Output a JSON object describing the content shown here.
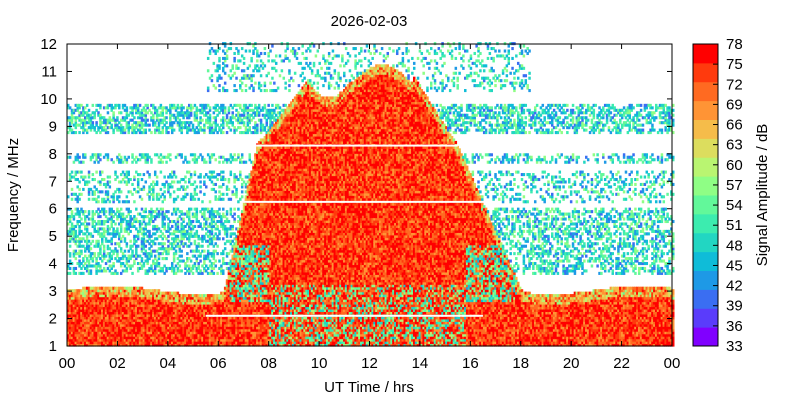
{
  "chart_data": {
    "type": "heatmap",
    "title": "2026-02-03",
    "xlabel": "UT Time / hrs",
    "ylabel": "Frequency / MHz",
    "colorbar_label": "Signal Amplitude / dB",
    "xlim": [
      0,
      24
    ],
    "ylim": [
      1,
      12
    ],
    "x_ticks": [
      "00",
      "02",
      "04",
      "06",
      "08",
      "10",
      "12",
      "14",
      "16",
      "18",
      "20",
      "22",
      "00"
    ],
    "y_ticks": [
      "1",
      "2",
      "3",
      "4",
      "5",
      "6",
      "7",
      "8",
      "9",
      "10",
      "11",
      "12"
    ],
    "colorbar": {
      "min": 33,
      "max": 78,
      "ticks": [
        "33",
        "36",
        "39",
        "42",
        "45",
        "48",
        "51",
        "54",
        "57",
        "60",
        "63",
        "66",
        "69",
        "72",
        "75",
        "78"
      ],
      "colors": [
        "#8000ff",
        "#5a3cfb",
        "#3a6ef2",
        "#1e99e6",
        "#0fbcd8",
        "#22d6c2",
        "#3cecaf",
        "#62f89a",
        "#8ffe85",
        "#b9f571",
        "#dcdd5e",
        "#f5bc4a",
        "#ff9435",
        "#ff6a21",
        "#ff3a0d",
        "#ff0000"
      ]
    },
    "summary": {
      "day_intense_band": {
        "start_hr": 6.2,
        "end_hr": 18.0,
        "peak_freq_mhz": 11.2,
        "amplitude_db": 78
      },
      "night_band": {
        "max_freq_mhz": 3.0,
        "amplitude_db": 75
      }
    }
  }
}
